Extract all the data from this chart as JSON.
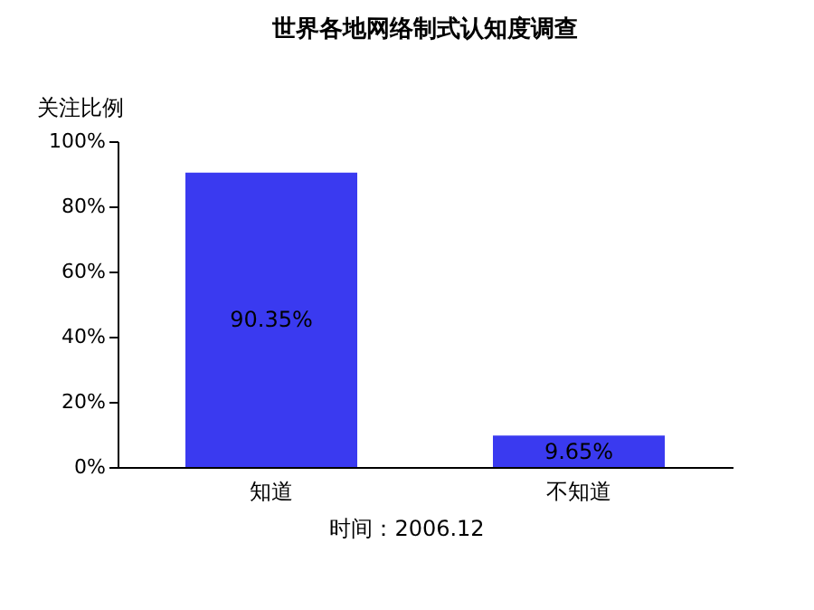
{
  "chart_data": {
    "type": "bar",
    "title": "世界各地网络制式认知度调查",
    "ylabel": "关注比例",
    "categories": [
      "知道",
      "不知道"
    ],
    "values": [
      90.35,
      9.65
    ],
    "color": "#3a3af0",
    "value_labels": [
      "90.35%",
      "9.65%"
    ],
    "ylim": [
      0,
      100
    ],
    "yticks": [
      {
        "value": 0,
        "label": "0%"
      },
      {
        "value": 20,
        "label": "20%"
      },
      {
        "value": 40,
        "label": "40%"
      },
      {
        "value": 60,
        "label": "60%"
      },
      {
        "value": 80,
        "label": "80%"
      },
      {
        "value": 100,
        "label": "100%"
      }
    ],
    "grid": false,
    "annotations": [
      "时间：2006.12"
    ]
  }
}
